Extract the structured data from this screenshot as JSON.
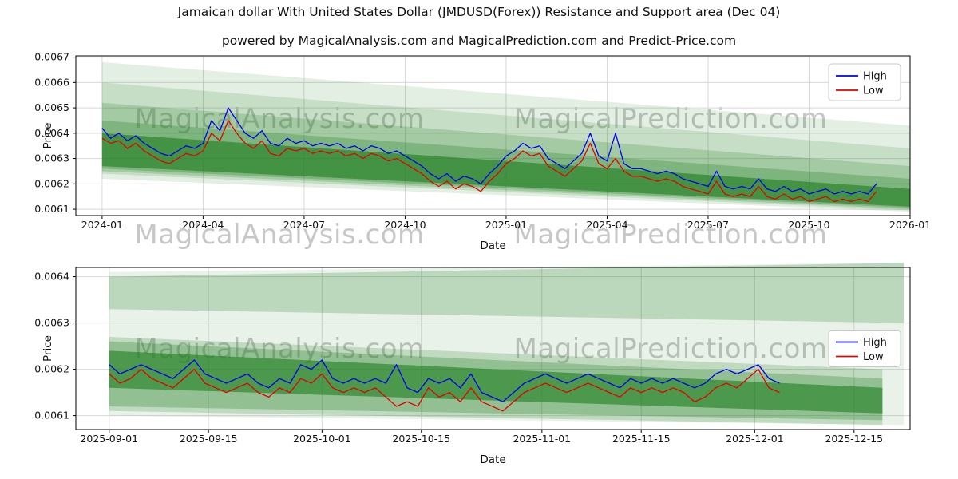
{
  "page": {
    "title": "Jamaican dollar With United States Dollar (JMDUSD(Forex)) Resistance and Support area (Dec 04)",
    "subtitle": "powered by MagicalAnalysis.com and MagicalPrediction.com and Predict-Price.com"
  },
  "watermarks": {
    "analysis": "MagicalAnalysis.com",
    "prediction": "MagicalPrediction.com"
  },
  "colors": {
    "high": "#0000ee",
    "low": "#e60000",
    "band": "#1e7d1e",
    "grid": "#d8d8d8",
    "spine": "#000000"
  },
  "legend": {
    "high_label": "High",
    "low_label": "Low"
  },
  "chart_data": [
    {
      "type": "line",
      "title": "",
      "xlabel": "Date",
      "ylabel": "Price",
      "x_unit": "months since 2024-01",
      "xlim": [
        -0.78,
        24.0
      ],
      "ylim": [
        0.006075,
        0.006705
      ],
      "grid": true,
      "legend_position": "upper right",
      "xticks": [
        {
          "v": 0,
          "label": "2024-01"
        },
        {
          "v": 3,
          "label": "2024-04"
        },
        {
          "v": 6,
          "label": "2024-07"
        },
        {
          "v": 9,
          "label": "2024-10"
        },
        {
          "v": 12,
          "label": "2025-01"
        },
        {
          "v": 15,
          "label": "2025-04"
        },
        {
          "v": 18,
          "label": "2025-07"
        },
        {
          "v": 21,
          "label": "2025-10"
        },
        {
          "v": 24,
          "label": "2026-01"
        }
      ],
      "yticks": [
        0.0061,
        0.0062,
        0.0063,
        0.0064,
        0.0065,
        0.0066,
        0.0067
      ],
      "series": [
        {
          "name": "High",
          "color": "high",
          "x0": 0,
          "dx": 0.25,
          "values": [
            0.00642,
            0.00638,
            0.0064,
            0.00637,
            0.00639,
            0.00636,
            0.00634,
            0.00632,
            0.00631,
            0.00633,
            0.00635,
            0.00634,
            0.00636,
            0.00645,
            0.00641,
            0.0065,
            0.00645,
            0.0064,
            0.00638,
            0.00641,
            0.00636,
            0.00635,
            0.00638,
            0.00636,
            0.00637,
            0.00635,
            0.00636,
            0.00635,
            0.00636,
            0.00634,
            0.00635,
            0.00633,
            0.00635,
            0.00634,
            0.00632,
            0.00633,
            0.00631,
            0.00629,
            0.00627,
            0.00624,
            0.00622,
            0.00624,
            0.00621,
            0.00623,
            0.00622,
            0.0062,
            0.00624,
            0.00627,
            0.00631,
            0.00633,
            0.00636,
            0.00634,
            0.00635,
            0.0063,
            0.00628,
            0.00626,
            0.00629,
            0.00632,
            0.0064,
            0.00631,
            0.00629,
            0.0064,
            0.00628,
            0.00626,
            0.00626,
            0.00625,
            0.00624,
            0.00625,
            0.00624,
            0.00622,
            0.00621,
            0.0062,
            0.00619,
            0.00625,
            0.00619,
            0.00618,
            0.00619,
            0.00618,
            0.00622,
            0.00618,
            0.00617,
            0.00619,
            0.00617,
            0.00618,
            0.00616,
            0.00617,
            0.00618,
            0.00616,
            0.00617,
            0.00616,
            0.00617,
            0.00616,
            0.0062
          ]
        },
        {
          "name": "Low",
          "color": "low",
          "x0": 0,
          "dx": 0.25,
          "values": [
            0.00638,
            0.00636,
            0.00637,
            0.00634,
            0.00636,
            0.00633,
            0.00631,
            0.00629,
            0.00628,
            0.0063,
            0.00632,
            0.00631,
            0.00633,
            0.0064,
            0.00637,
            0.00645,
            0.0064,
            0.00636,
            0.00634,
            0.00637,
            0.00632,
            0.00631,
            0.00634,
            0.00633,
            0.00634,
            0.00632,
            0.00633,
            0.00632,
            0.00633,
            0.00631,
            0.00632,
            0.0063,
            0.00632,
            0.00631,
            0.00629,
            0.0063,
            0.00628,
            0.00626,
            0.00624,
            0.00621,
            0.00619,
            0.00621,
            0.00618,
            0.0062,
            0.00619,
            0.00617,
            0.00621,
            0.00624,
            0.00628,
            0.0063,
            0.00633,
            0.00631,
            0.00632,
            0.00627,
            0.00625,
            0.00623,
            0.00626,
            0.00629,
            0.00636,
            0.00628,
            0.00626,
            0.0063,
            0.00625,
            0.00623,
            0.00623,
            0.00622,
            0.00621,
            0.00622,
            0.00621,
            0.00619,
            0.00618,
            0.00617,
            0.00616,
            0.00621,
            0.00616,
            0.00615,
            0.00616,
            0.00615,
            0.00619,
            0.00615,
            0.00614,
            0.00616,
            0.00614,
            0.00615,
            0.00613,
            0.00614,
            0.00615,
            0.00613,
            0.00614,
            0.00613,
            0.00614,
            0.00613,
            0.00617
          ]
        }
      ],
      "bands": [
        {
          "x": [
            0,
            24
          ],
          "y_left": [
            0.00622,
            0.00668
          ],
          "y_right": [
            0.00609,
            0.00643
          ],
          "opacity": 0.12
        },
        {
          "x": [
            0,
            24
          ],
          "y_left": [
            0.00624,
            0.0066
          ],
          "y_right": [
            0.006095,
            0.00634
          ],
          "opacity": 0.15
        },
        {
          "x": [
            0,
            24
          ],
          "y_left": [
            0.00625,
            0.00652
          ],
          "y_right": [
            0.0061,
            0.00627
          ],
          "opacity": 0.2
        },
        {
          "x": [
            0,
            24
          ],
          "y_left": [
            0.00626,
            0.00645
          ],
          "y_right": [
            0.006105,
            0.00622
          ],
          "opacity": 0.28
        },
        {
          "x": [
            0,
            24
          ],
          "y_left": [
            0.00627,
            0.0064
          ],
          "y_right": [
            0.00611,
            0.00618
          ],
          "opacity": 0.6
        }
      ]
    },
    {
      "type": "line",
      "title": "",
      "xlabel": "Date",
      "ylabel": "Price",
      "x_unit": "days since 2025-09-01",
      "xlim": [
        -4.7,
        112.9
      ],
      "ylim": [
        0.00607,
        0.00642
      ],
      "grid": true,
      "legend_position": "center right",
      "xticks": [
        {
          "v": 0,
          "label": "2025-09-01"
        },
        {
          "v": 14,
          "label": "2025-09-15"
        },
        {
          "v": 30,
          "label": "2025-10-01"
        },
        {
          "v": 44,
          "label": "2025-10-15"
        },
        {
          "v": 61,
          "label": "2025-11-01"
        },
        {
          "v": 75,
          "label": "2025-11-15"
        },
        {
          "v": 91,
          "label": "2025-12-01"
        },
        {
          "v": 105,
          "label": "2025-12-15"
        }
      ],
      "yticks": [
        0.0061,
        0.0062,
        0.0063,
        0.0064
      ],
      "series": [
        {
          "name": "High",
          "color": "high",
          "x0": 0,
          "dx": 1.5,
          "values": [
            0.00621,
            0.00619,
            0.0062,
            0.00621,
            0.0062,
            0.00619,
            0.00618,
            0.0062,
            0.00622,
            0.00619,
            0.00618,
            0.00617,
            0.00618,
            0.00619,
            0.00617,
            0.00616,
            0.00618,
            0.00617,
            0.00621,
            0.0062,
            0.00622,
            0.00618,
            0.00617,
            0.00618,
            0.00617,
            0.00618,
            0.00617,
            0.00621,
            0.00616,
            0.00615,
            0.00618,
            0.00617,
            0.00618,
            0.00616,
            0.00619,
            0.00615,
            0.00614,
            0.00613,
            0.00615,
            0.00617,
            0.00618,
            0.00619,
            0.00618,
            0.00617,
            0.00618,
            0.00619,
            0.00618,
            0.00617,
            0.00616,
            0.00618,
            0.00617,
            0.00618,
            0.00617,
            0.00618,
            0.00617,
            0.00616,
            0.00617,
            0.00619,
            0.0062,
            0.00619,
            0.0062,
            0.00621,
            0.00618,
            0.00617
          ]
        },
        {
          "name": "Low",
          "color": "low",
          "x0": 0,
          "dx": 1.5,
          "values": [
            0.00619,
            0.00617,
            0.00618,
            0.0062,
            0.00618,
            0.00617,
            0.00616,
            0.00618,
            0.0062,
            0.00617,
            0.00616,
            0.00615,
            0.00616,
            0.00617,
            0.00615,
            0.00614,
            0.00616,
            0.00615,
            0.00618,
            0.00617,
            0.00619,
            0.00616,
            0.00615,
            0.00616,
            0.00615,
            0.00616,
            0.00614,
            0.00612,
            0.00613,
            0.00612,
            0.00616,
            0.00614,
            0.00615,
            0.00613,
            0.00616,
            0.00613,
            0.00612,
            0.00611,
            0.00613,
            0.00615,
            0.00616,
            0.00617,
            0.00616,
            0.00615,
            0.00616,
            0.00617,
            0.00616,
            0.00615,
            0.00614,
            0.00616,
            0.00615,
            0.00616,
            0.00615,
            0.00616,
            0.00615,
            0.00613,
            0.00614,
            0.00616,
            0.00617,
            0.00616,
            0.00618,
            0.0062,
            0.00616,
            0.00615
          ]
        }
      ],
      "bands": [
        {
          "x": [
            0,
            112
          ],
          "y_left": [
            0.0061,
            0.00641
          ],
          "y_right": [
            0.00608,
            0.00643
          ],
          "opacity": 0.1
        },
        {
          "x": [
            0,
            112
          ],
          "y_left": [
            0.00633,
            0.0064
          ],
          "y_right": [
            0.0063,
            0.00643
          ],
          "opacity": 0.22
        },
        {
          "x": [
            0,
            109
          ],
          "y_left": [
            0.00611,
            0.00627
          ],
          "y_right": [
            0.00608,
            0.0062
          ],
          "opacity": 0.2
        },
        {
          "x": [
            0,
            109
          ],
          "y_left": [
            0.00612,
            0.00626
          ],
          "y_right": [
            0.00609,
            0.00618
          ],
          "opacity": 0.28
        },
        {
          "x": [
            0,
            109
          ],
          "y_left": [
            0.00616,
            0.00624
          ],
          "y_right": [
            0.006105,
            0.00616
          ],
          "opacity": 0.6
        }
      ]
    }
  ]
}
